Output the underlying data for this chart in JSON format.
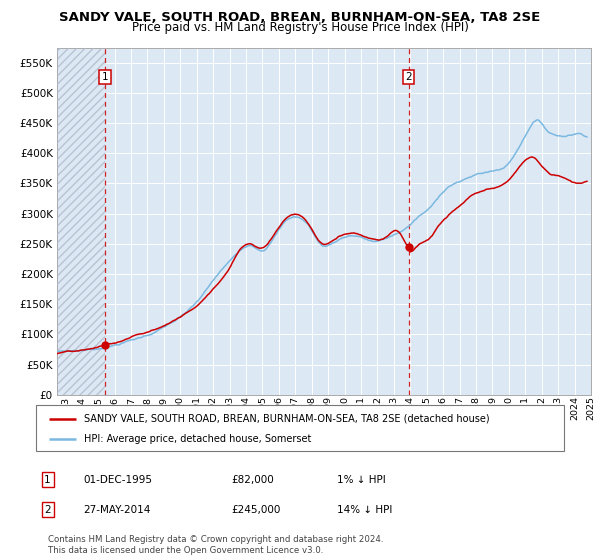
{
  "title": "SANDY VALE, SOUTH ROAD, BREAN, BURNHAM-ON-SEA, TA8 2SE",
  "subtitle": "Price paid vs. HM Land Registry's House Price Index (HPI)",
  "legend_line1": "SANDY VALE, SOUTH ROAD, BREAN, BURNHAM-ON-SEA, TA8 2SE (detached house)",
  "legend_line2": "HPI: Average price, detached house, Somerset",
  "annotation1_date": "01-DEC-1995",
  "annotation1_price": 82000,
  "annotation1_pct": "1% ↓ HPI",
  "annotation1_year": 1995.92,
  "annotation2_date": "27-MAY-2014",
  "annotation2_price": 245000,
  "annotation2_pct": "14% ↓ HPI",
  "annotation2_year": 2014.41,
  "footer": "Contains HM Land Registry data © Crown copyright and database right 2024.\nThis data is licensed under the Open Government Licence v3.0.",
  "ylim": [
    0,
    575000
  ],
  "yticks": [
    0,
    50000,
    100000,
    150000,
    200000,
    250000,
    300000,
    350000,
    400000,
    450000,
    500000,
    550000
  ],
  "hpi_color": "#7bb8e0",
  "price_color": "#cc0000",
  "bg_color": "#dce9f5",
  "grid_color": "#ffffff",
  "xlim_start": 1993.0,
  "xlim_end": 2025.5,
  "hpi_anchors": [
    [
      1993.0,
      71000
    ],
    [
      1994.0,
      73000
    ],
    [
      1995.0,
      75000
    ],
    [
      1996.0,
      80000
    ],
    [
      1997.0,
      88000
    ],
    [
      1998.0,
      96000
    ],
    [
      1999.0,
      107000
    ],
    [
      2000.0,
      122000
    ],
    [
      2001.0,
      140000
    ],
    [
      2002.0,
      170000
    ],
    [
      2003.0,
      205000
    ],
    [
      2004.0,
      233000
    ],
    [
      2004.8,
      248000
    ],
    [
      2005.5,
      242000
    ],
    [
      2006.0,
      255000
    ],
    [
      2007.0,
      292000
    ],
    [
      2007.8,
      295000
    ],
    [
      2008.5,
      275000
    ],
    [
      2009.0,
      253000
    ],
    [
      2009.8,
      255000
    ],
    [
      2010.5,
      265000
    ],
    [
      2011.0,
      268000
    ],
    [
      2011.8,
      262000
    ],
    [
      2012.5,
      258000
    ],
    [
      2013.0,
      262000
    ],
    [
      2013.8,
      272000
    ],
    [
      2014.4,
      283000
    ],
    [
      2015.0,
      298000
    ],
    [
      2015.8,
      315000
    ],
    [
      2016.5,
      340000
    ],
    [
      2017.0,
      352000
    ],
    [
      2017.8,
      360000
    ],
    [
      2018.5,
      368000
    ],
    [
      2019.0,
      372000
    ],
    [
      2019.8,
      376000
    ],
    [
      2020.5,
      388000
    ],
    [
      2021.0,
      410000
    ],
    [
      2021.5,
      435000
    ],
    [
      2022.0,
      458000
    ],
    [
      2022.5,
      455000
    ],
    [
      2022.8,
      445000
    ],
    [
      2023.2,
      438000
    ],
    [
      2023.8,
      436000
    ],
    [
      2024.5,
      440000
    ],
    [
      2025.2,
      438000
    ]
  ],
  "prop_anchors": [
    [
      1993.0,
      71000
    ],
    [
      1994.0,
      73500
    ],
    [
      1995.0,
      76000
    ],
    [
      1995.92,
      82000
    ],
    [
      1996.5,
      83000
    ],
    [
      1997.5,
      92000
    ],
    [
      1998.5,
      100000
    ],
    [
      1999.5,
      110000
    ],
    [
      2000.5,
      125000
    ],
    [
      2001.5,
      143000
    ],
    [
      2002.5,
      173000
    ],
    [
      2003.5,
      207000
    ],
    [
      2004.0,
      233000
    ],
    [
      2004.8,
      248000
    ],
    [
      2005.5,
      242000
    ],
    [
      2006.0,
      255000
    ],
    [
      2007.0,
      292000
    ],
    [
      2007.8,
      295000
    ],
    [
      2008.5,
      273000
    ],
    [
      2009.0,
      251000
    ],
    [
      2009.8,
      253000
    ],
    [
      2010.5,
      263000
    ],
    [
      2011.0,
      266000
    ],
    [
      2011.8,
      260000
    ],
    [
      2012.5,
      256000
    ],
    [
      2013.0,
      260000
    ],
    [
      2013.8,
      270000
    ],
    [
      2014.41,
      245000
    ],
    [
      2015.0,
      255000
    ],
    [
      2015.8,
      270000
    ],
    [
      2016.0,
      278000
    ],
    [
      2016.5,
      295000
    ],
    [
      2017.0,
      308000
    ],
    [
      2017.5,
      318000
    ],
    [
      2018.0,
      330000
    ],
    [
      2018.5,
      338000
    ],
    [
      2019.0,
      342000
    ],
    [
      2019.5,
      345000
    ],
    [
      2020.0,
      348000
    ],
    [
      2020.5,
      358000
    ],
    [
      2021.0,
      375000
    ],
    [
      2021.5,
      390000
    ],
    [
      2022.0,
      395000
    ],
    [
      2022.3,
      388000
    ],
    [
      2022.7,
      375000
    ],
    [
      2023.0,
      368000
    ],
    [
      2023.5,
      365000
    ],
    [
      2024.0,
      360000
    ],
    [
      2024.5,
      355000
    ],
    [
      2025.2,
      358000
    ]
  ]
}
